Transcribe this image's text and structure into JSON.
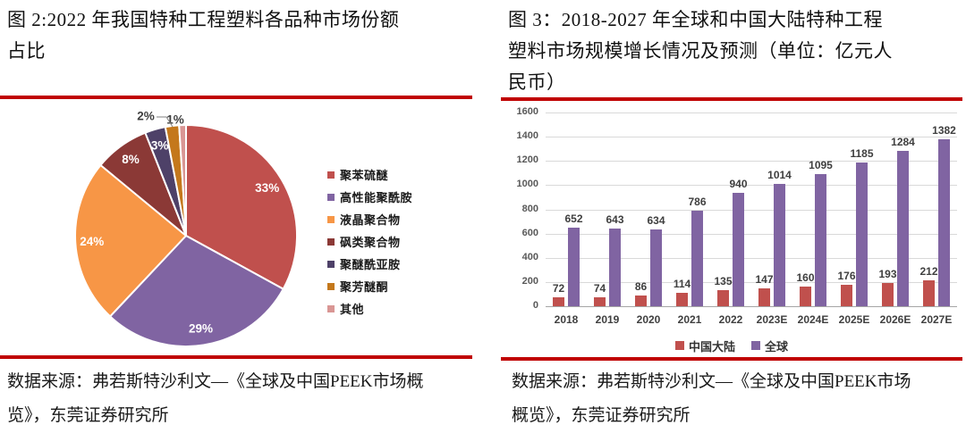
{
  "accent_color": "#c00000",
  "figure2": {
    "title": "图 2:2022 年我国特种工程塑料各品种市场份额占比",
    "source": "数据来源：弗若斯特沙利文—《全球及中国PEEK市场概览》，东莞证券研究所"
  },
  "figure3": {
    "title": "图 3：2018-2027 年全球和中国大陆特种工程塑料市场规模增长情况及预测（单位：亿元人民币）",
    "source": "数据来源：弗若斯特沙利文—《全球及中国PEEK市场概览》，东莞证券研究所"
  },
  "chart_data": [
    {
      "type": "pie",
      "title": "2022 年我国特种工程塑料各品种市场份额占比",
      "labels": [
        "聚苯硫醚",
        "高性能聚酰胺",
        "液晶聚合物",
        "砜类聚合物",
        "聚醚酰亚胺",
        "聚芳醚酮",
        "其他"
      ],
      "values": [
        33,
        29,
        24,
        8,
        3,
        2,
        1
      ],
      "data_labels": [
        "33%",
        "29%",
        "24%",
        "8%",
        "3%",
        "2%",
        "1%"
      ],
      "colors": [
        "#c0504d",
        "#8064a2",
        "#f79646",
        "#8b3936",
        "#4e4168",
        "#c4781c",
        "#d99694"
      ],
      "unit": "%",
      "legend_position": "right",
      "start_angle_deg": 0,
      "direction": "clockwise"
    },
    {
      "type": "bar",
      "title": "2018-2027 年全球和中国大陆特种工程塑料市场规模增长情况及预测",
      "unit": "亿元人民币",
      "categories": [
        "2018",
        "2019",
        "2020",
        "2021",
        "2022",
        "2023E",
        "2024E",
        "2025E",
        "2026E",
        "2027E"
      ],
      "series": [
        {
          "name": "中国大陆",
          "color": "#c0504d",
          "values": [
            72,
            74,
            86,
            114,
            135,
            147,
            160,
            176,
            193,
            212
          ]
        },
        {
          "name": "全球",
          "color": "#8064a2",
          "values": [
            652,
            643,
            634,
            786,
            940,
            1014,
            1095,
            1185,
            1284,
            1382
          ]
        }
      ],
      "ylim": [
        0,
        1600
      ],
      "ytick_step": 200,
      "grid": true,
      "legend_position": "bottom"
    }
  ]
}
